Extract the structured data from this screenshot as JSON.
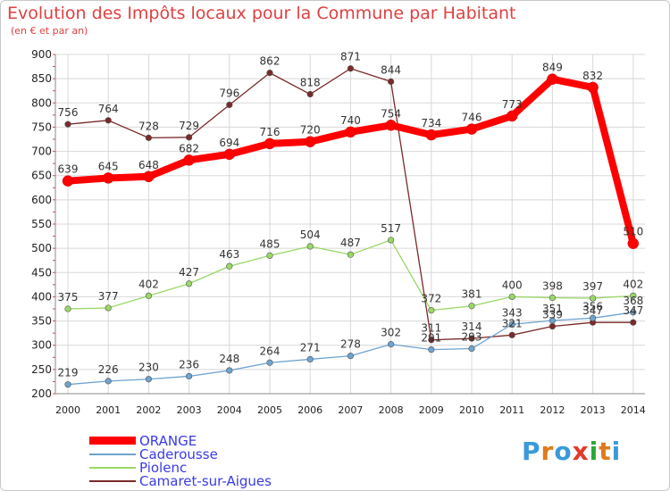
{
  "title": "Evolution des Impôts locaux pour la Commune par Habitant",
  "subtitle": "(en € et par an)",
  "logo_text": "Proxiti",
  "chart_data": {
    "type": "line",
    "title": "Evolution des Impôts locaux pour la Commune par Habitant",
    "subtitle": "(en € et par an)",
    "x": [
      2000,
      2001,
      2002,
      2003,
      2004,
      2005,
      2006,
      2007,
      2008,
      2009,
      2010,
      2011,
      2012,
      2013,
      2014
    ],
    "ylim": [
      200,
      900
    ],
    "yticks": [
      200,
      250,
      300,
      350,
      400,
      450,
      500,
      550,
      600,
      650,
      700,
      750,
      800,
      850,
      900
    ],
    "grid": true,
    "legend_position": "bottom-left",
    "series": [
      {
        "name": "ORANGE",
        "color": "#ff0000",
        "values": [
          639,
          645,
          648,
          682,
          694,
          716,
          720,
          740,
          754,
          734,
          746,
          773,
          849,
          832,
          510
        ]
      },
      {
        "name": "Caderousse",
        "color": "#6fa3d0",
        "values": [
          219,
          226,
          230,
          236,
          248,
          264,
          271,
          278,
          302,
          291,
          293,
          343,
          351,
          356,
          368
        ]
      },
      {
        "name": "Piolenc",
        "color": "#99d866",
        "values": [
          375,
          377,
          402,
          427,
          463,
          485,
          504,
          487,
          517,
          372,
          381,
          400,
          398,
          397,
          402
        ]
      },
      {
        "name": "Camaret-sur-Aigues",
        "color": "#7a2a2a",
        "values": [
          756,
          764,
          728,
          729,
          796,
          862,
          818,
          871,
          844,
          311,
          314,
          321,
          339,
          347,
          347
        ]
      }
    ]
  }
}
